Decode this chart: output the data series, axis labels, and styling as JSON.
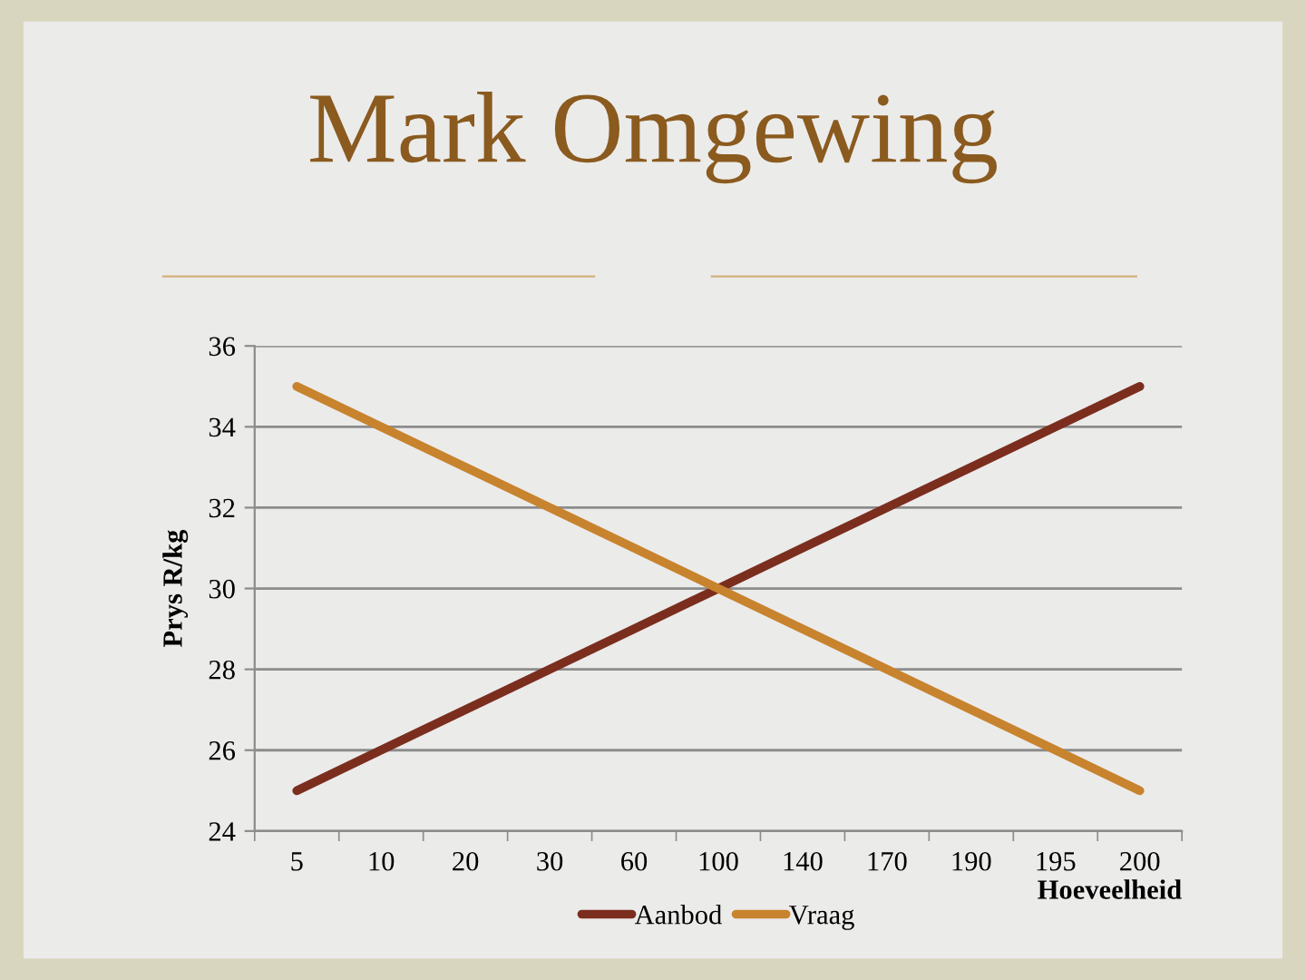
{
  "chart_data": {
    "type": "line",
    "title": "Mark Omgewing",
    "xlabel": "Hoeveelheid",
    "ylabel": "Prys R/kg",
    "categories": [
      "5",
      "10",
      "20",
      "30",
      "60",
      "100",
      "140",
      "170",
      "190",
      "195",
      "200"
    ],
    "series": [
      {
        "name": "Aanbod",
        "color": "#7b2e1e",
        "values": [
          25,
          26,
          27,
          28,
          29,
          30,
          31,
          32,
          33,
          34,
          35
        ]
      },
      {
        "name": "Vraag",
        "color": "#c8832e",
        "values": [
          35,
          34,
          33,
          32,
          31,
          30,
          29,
          28,
          27,
          26,
          25
        ]
      }
    ],
    "ylim": [
      24,
      36
    ],
    "yticks": [
      24,
      26,
      28,
      30,
      32,
      34,
      36
    ],
    "grid": "y",
    "legend": "bottom",
    "marker": "none",
    "line_style": "solid"
  }
}
